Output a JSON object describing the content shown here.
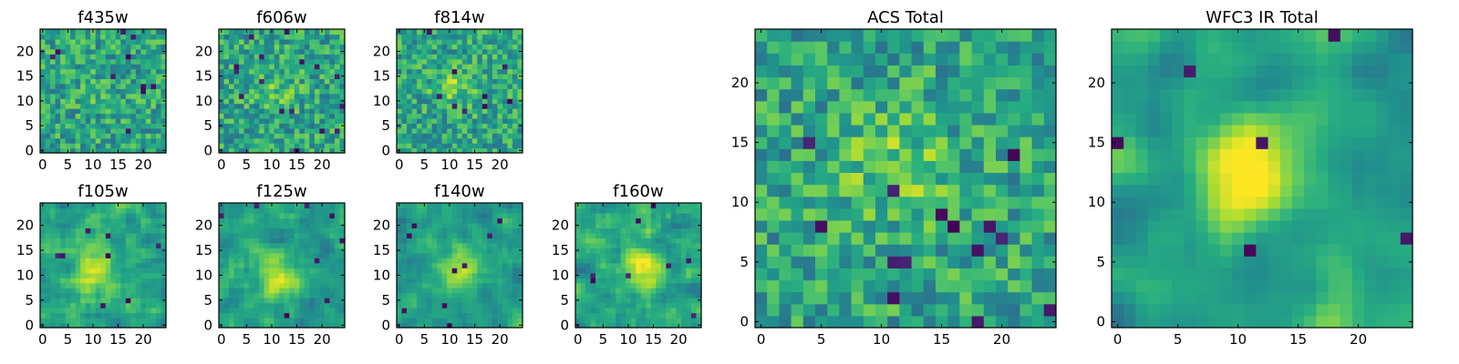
{
  "figure_title": "",
  "colormap": "viridis",
  "chart_data": [
    {
      "type": "heatmap",
      "title": "f435w",
      "grid": [
        25,
        25
      ],
      "xlim": [
        0,
        25
      ],
      "ylim": [
        0,
        25
      ],
      "xticks": [
        0,
        5,
        10,
        15,
        20
      ],
      "yticks": [
        0,
        5,
        10,
        15,
        20
      ],
      "peak": [
        11,
        11
      ],
      "blobs": 0.05,
      "hot_pixels": 10,
      "smooth": 0,
      "seed": 11
    },
    {
      "type": "heatmap",
      "title": "f606w",
      "grid": [
        25,
        25
      ],
      "xlim": [
        0,
        25
      ],
      "ylim": [
        0,
        25
      ],
      "xticks": [
        0,
        5,
        10,
        15,
        20
      ],
      "yticks": [
        0,
        5,
        10,
        15,
        20
      ],
      "peak": [
        11,
        12
      ],
      "blobs": 0.12,
      "hot_pixels": 16,
      "smooth": 0,
      "seed": 22
    },
    {
      "type": "heatmap",
      "title": "f814w",
      "grid": [
        25,
        25
      ],
      "xlim": [
        0,
        25
      ],
      "ylim": [
        0,
        25
      ],
      "xticks": [
        0,
        5,
        10,
        15,
        20
      ],
      "yticks": [
        0,
        5,
        10,
        15,
        20
      ],
      "peak": [
        11,
        13
      ],
      "blobs": 0.18,
      "hot_pixels": 9,
      "smooth": 0,
      "seed": 33
    },
    {
      "type": "heatmap",
      "title": "f105w",
      "grid": [
        25,
        25
      ],
      "xlim": [
        0,
        25
      ],
      "ylim": [
        0,
        25
      ],
      "xticks": [
        0,
        5,
        10,
        15,
        20
      ],
      "yticks": [
        0,
        5,
        10,
        15,
        20
      ],
      "peak": [
        10,
        11
      ],
      "blobs": 0.3,
      "hot_pixels": 8,
      "smooth": 1,
      "seed": 44
    },
    {
      "type": "heatmap",
      "title": "f125w",
      "grid": [
        25,
        25
      ],
      "xlim": [
        0,
        25
      ],
      "ylim": [
        0,
        25
      ],
      "xticks": [
        0,
        5,
        10,
        15,
        20
      ],
      "yticks": [
        0,
        5,
        10,
        15,
        20
      ],
      "peak": [
        11,
        11
      ],
      "blobs": 0.3,
      "hot_pixels": 8,
      "smooth": 1,
      "seed": 55
    },
    {
      "type": "heatmap",
      "title": "f140w",
      "grid": [
        25,
        25
      ],
      "xlim": [
        0,
        25
      ],
      "ylim": [
        0,
        25
      ],
      "xticks": [
        0,
        5,
        10,
        15,
        20
      ],
      "yticks": [
        0,
        5,
        10,
        15,
        20
      ],
      "peak": [
        12,
        11
      ],
      "blobs": 0.32,
      "hot_pixels": 9,
      "smooth": 1,
      "seed": 66
    },
    {
      "type": "heatmap",
      "title": "f160w",
      "grid": [
        25,
        25
      ],
      "xlim": [
        0,
        25
      ],
      "ylim": [
        0,
        25
      ],
      "xticks": [
        0,
        5,
        10,
        15,
        20
      ],
      "yticks": [
        0,
        5,
        10,
        15,
        20
      ],
      "peak": [
        13,
        12
      ],
      "blobs": 0.32,
      "hot_pixels": 8,
      "smooth": 1,
      "seed": 77
    },
    {
      "type": "heatmap",
      "title": "ACS Total",
      "grid": [
        25,
        25
      ],
      "xlim": [
        0,
        25
      ],
      "ylim": [
        0,
        25
      ],
      "xticks": [
        0,
        5,
        10,
        15,
        20
      ],
      "yticks": [
        0,
        5,
        10,
        15,
        20
      ],
      "peak": [
        11,
        13
      ],
      "blobs": 0.2,
      "hot_pixels": 14,
      "smooth": 0,
      "seed": 88
    },
    {
      "type": "heatmap",
      "title": "WFC3 IR Total",
      "grid": [
        25,
        25
      ],
      "xlim": [
        0,
        25
      ],
      "ylim": [
        0,
        25
      ],
      "xticks": [
        0,
        5,
        10,
        15,
        20
      ],
      "yticks": [
        0,
        5,
        10,
        15,
        20
      ],
      "peak": [
        11,
        12
      ],
      "blobs": 0.55,
      "hot_pixels": 6,
      "smooth": 2,
      "seed": 99
    }
  ]
}
